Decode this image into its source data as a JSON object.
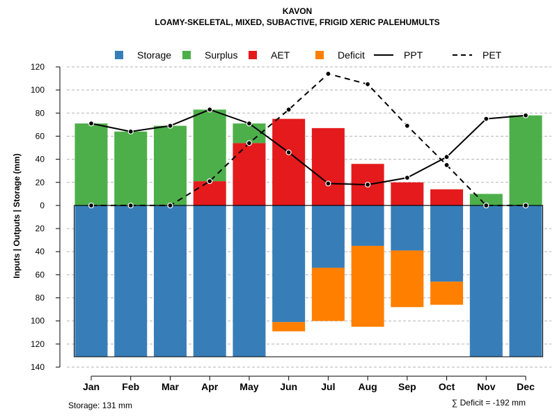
{
  "chart_data": {
    "type": "bar",
    "title": "KAVON",
    "subtitle": "LOAMY-SKELETAL, MIXED, SUBACTIVE, FRIGID XERIC PALEHUMULTS",
    "ylabel": "Inputs | Outputs | Storage     (mm)",
    "ylim": [
      -140,
      120
    ],
    "yticks": [
      120,
      100,
      80,
      60,
      40,
      20,
      0,
      -20,
      -40,
      -60,
      -80,
      -100,
      -120,
      -140
    ],
    "ytick_labels": [
      "120",
      "100",
      "80",
      "60",
      "40",
      "20",
      "0",
      "20",
      "40",
      "60",
      "80",
      "100",
      "120",
      "140"
    ],
    "categories": [
      "Jan",
      "Feb",
      "Mar",
      "Apr",
      "May",
      "Jun",
      "Jul",
      "Aug",
      "Sep",
      "Oct",
      "Nov",
      "Dec"
    ],
    "grid": true,
    "legend_position": "top",
    "legend": [
      {
        "label": "Storage",
        "kind": "box",
        "color": "#377eb8"
      },
      {
        "label": "Surplus",
        "kind": "box",
        "color": "#4daf4a"
      },
      {
        "label": "AET",
        "kind": "box",
        "color": "#e41a1c"
      },
      {
        "label": "Deficit",
        "kind": "box",
        "color": "#ff7f00"
      },
      {
        "label": "PPT",
        "kind": "solid-line",
        "color": "#000000"
      },
      {
        "label": "PET",
        "kind": "dashed-line",
        "color": "#000000"
      }
    ],
    "series": [
      {
        "name": "Storage",
        "color": "#377eb8",
        "values": [
          -131,
          -131,
          -131,
          -131,
          -131,
          -101,
          -54,
          -35,
          -39,
          -66,
          -131,
          -131
        ]
      },
      {
        "name": "Surplus",
        "color": "#4daf4a",
        "values": [
          71,
          64,
          69,
          62,
          17,
          0,
          0,
          0,
          0,
          0,
          10,
          78
        ]
      },
      {
        "name": "AET",
        "color": "#e41a1c",
        "values": [
          0,
          0,
          0,
          21,
          54,
          75,
          67,
          36,
          20,
          14,
          0,
          0
        ]
      },
      {
        "name": "Deficit",
        "color": "#ff7f00",
        "values": [
          0,
          0,
          0,
          0,
          0,
          -8,
          -46,
          -70,
          -49,
          -20,
          0,
          0
        ]
      },
      {
        "name": "PPT",
        "color": "#000000",
        "values": [
          71,
          64,
          69,
          83,
          71,
          46,
          19,
          18,
          24,
          42,
          75,
          78
        ]
      },
      {
        "name": "PET",
        "color": "#000000",
        "values": [
          0,
          0,
          0,
          21,
          54,
          83,
          114,
          105,
          69,
          35,
          0,
          0
        ]
      }
    ],
    "storage_note": "Storage: 131 mm",
    "deficit_note": "∑ Deficit = -192 mm"
  }
}
